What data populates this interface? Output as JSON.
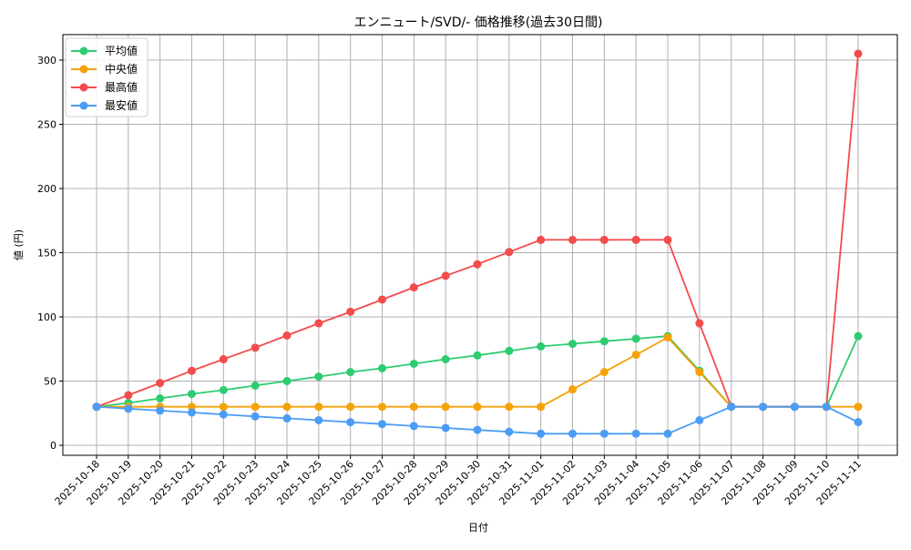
{
  "chart_data": {
    "type": "line",
    "title": "エンニュート/SVD/- 価格推移(過去30日間)",
    "xlabel": "日付",
    "ylabel": "値 (円)",
    "ylim": [
      -8,
      320
    ],
    "yticks": [
      0,
      50,
      100,
      150,
      200,
      250,
      300
    ],
    "grid": true,
    "legend_position": "upper left",
    "categories": [
      "2025-10-18",
      "2025-10-19",
      "2025-10-20",
      "2025-10-21",
      "2025-10-22",
      "2025-10-23",
      "2025-10-24",
      "2025-10-25",
      "2025-10-26",
      "2025-10-27",
      "2025-10-28",
      "2025-10-29",
      "2025-10-30",
      "2025-10-31",
      "2025-11-01",
      "2025-11-02",
      "2025-11-03",
      "2025-11-04",
      "2025-11-05",
      "2025-11-06",
      "2025-11-07",
      "2025-11-08",
      "2025-11-09",
      "2025-11-10",
      "2025-11-11"
    ],
    "series": [
      {
        "name": "平均値",
        "color": "#2ecc71",
        "values": [
          30,
          33,
          36.5,
          40,
          43,
          46.5,
          50,
          53.5,
          57,
          60,
          63.5,
          67,
          70,
          73.5,
          77,
          79,
          81,
          83,
          85,
          58,
          30,
          30,
          30,
          30,
          85
        ]
      },
      {
        "name": "中央値",
        "color": "#f5a20a",
        "values": [
          30,
          30,
          30,
          30,
          30,
          30,
          30,
          30,
          30,
          30,
          30,
          30,
          30,
          30,
          30,
          43.5,
          57,
          70.5,
          84,
          57,
          30,
          30,
          30,
          30,
          30
        ]
      },
      {
        "name": "最高値",
        "color": "#f44b4b",
        "values": [
          30,
          39,
          48.5,
          58,
          67,
          76,
          85.5,
          95,
          104,
          113.5,
          123,
          132,
          141,
          150.5,
          160,
          160,
          160,
          160,
          160,
          95,
          30,
          30,
          30,
          30,
          305
        ]
      },
      {
        "name": "最安値",
        "color": "#4b9cf5",
        "values": [
          30,
          28.5,
          27,
          25.5,
          24,
          22.5,
          21,
          19.5,
          18,
          16.5,
          15,
          13.5,
          12,
          10.5,
          9,
          9,
          9,
          9,
          9,
          19.5,
          30,
          30,
          30,
          30,
          18
        ]
      }
    ]
  }
}
